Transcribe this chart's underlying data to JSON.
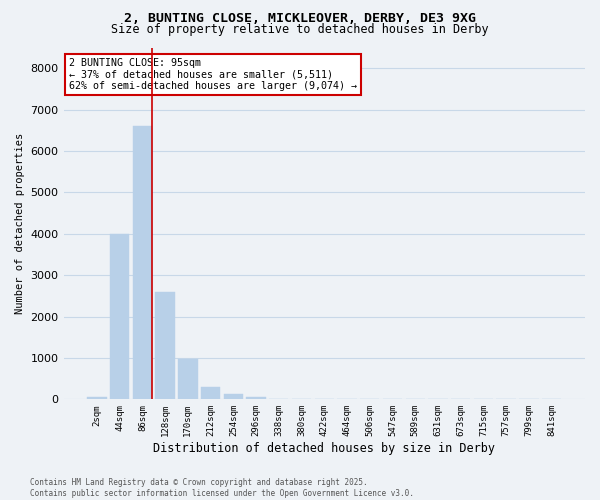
{
  "title_line1": "2, BUNTING CLOSE, MICKLEOVER, DERBY, DE3 9XG",
  "title_line2": "Size of property relative to detached houses in Derby",
  "xlabel": "Distribution of detached houses by size in Derby",
  "ylabel": "Number of detached properties",
  "categories": [
    "2sqm",
    "44sqm",
    "86sqm",
    "128sqm",
    "170sqm",
    "212sqm",
    "254sqm",
    "296sqm",
    "338sqm",
    "380sqm",
    "422sqm",
    "464sqm",
    "506sqm",
    "547sqm",
    "589sqm",
    "631sqm",
    "673sqm",
    "715sqm",
    "757sqm",
    "799sqm",
    "841sqm"
  ],
  "values": [
    50,
    4000,
    6600,
    2600,
    970,
    300,
    120,
    60,
    0,
    0,
    0,
    0,
    0,
    0,
    0,
    0,
    0,
    0,
    0,
    0,
    0
  ],
  "bar_color": "#b8d0e8",
  "bar_edge_color": "#b8d0e8",
  "vline_x_index": 2.42,
  "vline_color": "#cc0000",
  "annotation_text": "2 BUNTING CLOSE: 95sqm\n← 37% of detached houses are smaller (5,511)\n62% of semi-detached houses are larger (9,074) →",
  "annotation_box_color": "white",
  "annotation_box_edge_color": "#cc0000",
  "ylim": [
    0,
    8500
  ],
  "yticks": [
    0,
    1000,
    2000,
    3000,
    4000,
    5000,
    6000,
    7000,
    8000
  ],
  "grid_color": "#c8d8e8",
  "background_color": "#eef2f6",
  "plot_bg_color": "#eef2f6",
  "footer_line1": "Contains HM Land Registry data © Crown copyright and database right 2025.",
  "footer_line2": "Contains public sector information licensed under the Open Government Licence v3.0."
}
